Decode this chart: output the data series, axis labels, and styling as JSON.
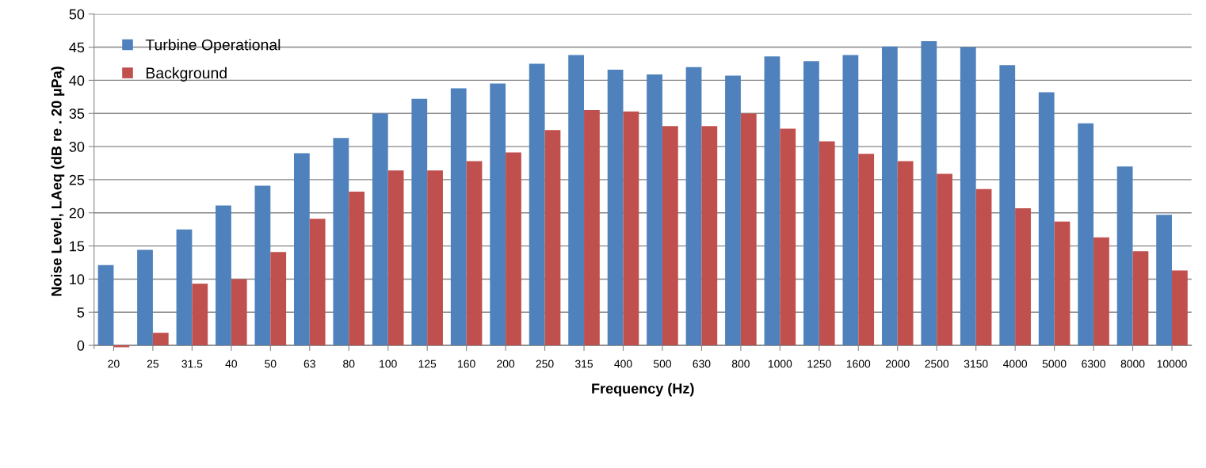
{
  "chart_data": {
    "type": "bar",
    "xlabel": "Frequency (Hz)",
    "ylabel": "Noise Level, LAeq (dB re . 20 µPa)",
    "categories": [
      "20",
      "25",
      "31.5",
      "40",
      "50",
      "63",
      "80",
      "100",
      "125",
      "160",
      "200",
      "250",
      "315",
      "400",
      "500",
      "630",
      "800",
      "1000",
      "1250",
      "1600",
      "2000",
      "2500",
      "3150",
      "4000",
      "5000",
      "6300",
      "8000",
      "10000"
    ],
    "series": [
      {
        "name": "Turbine Operational",
        "color": "#4f81bd",
        "values": [
          12.1,
          14.4,
          17.5,
          21.1,
          24.1,
          29.0,
          31.3,
          35.0,
          37.2,
          38.8,
          39.5,
          42.5,
          43.8,
          41.6,
          40.9,
          42.0,
          40.7,
          43.6,
          42.9,
          43.8,
          45.1,
          45.9,
          45.0,
          42.3,
          38.2,
          33.5,
          27.0,
          19.7
        ]
      },
      {
        "name": "Background",
        "color": "#c0504d",
        "values": [
          -0.3,
          1.9,
          9.3,
          10.0,
          14.1,
          19.1,
          23.2,
          26.4,
          26.4,
          27.8,
          29.1,
          32.5,
          35.5,
          35.3,
          33.1,
          33.1,
          35.0,
          32.7,
          30.8,
          28.9,
          27.8,
          25.9,
          23.6,
          20.7,
          18.7,
          16.3,
          14.2,
          11.3
        ]
      }
    ],
    "ylim": [
      -0.5,
      50
    ],
    "yticks": [
      0,
      5,
      10,
      15,
      20,
      25,
      30,
      35,
      40,
      45,
      50
    ],
    "grid": "y",
    "legend": "top left"
  }
}
